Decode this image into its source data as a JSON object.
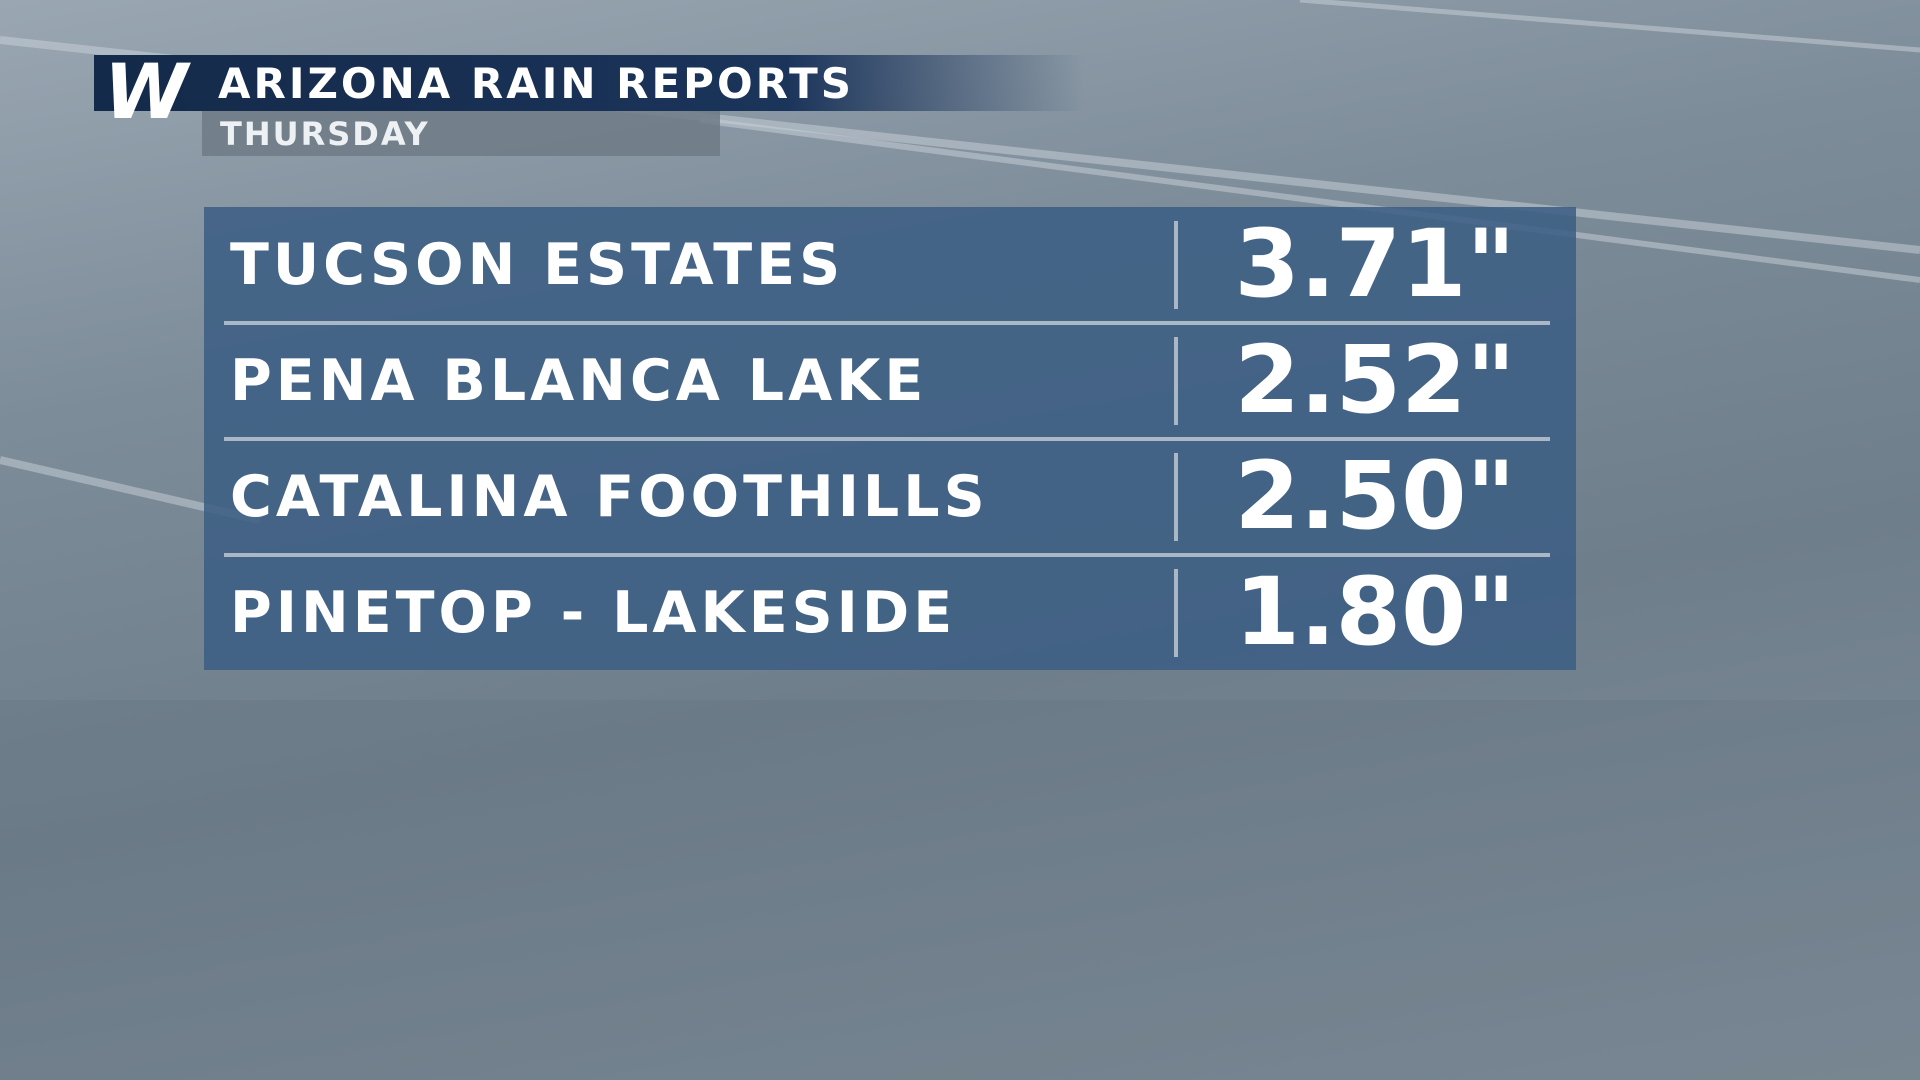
{
  "header": {
    "logo": "W",
    "title": "ARIZONA RAIN REPORTS",
    "subtitle": "THURSDAY"
  },
  "table": {
    "rows": [
      [
        "TUCSON ESTATES",
        "3.71\""
      ],
      [
        "PENA BLANCA LAKE",
        "2.52\""
      ],
      [
        "CATALINA FOOTHILLS",
        "2.50\""
      ],
      [
        "PINETOP - LAKESIDE",
        "1.80\""
      ]
    ]
  }
}
